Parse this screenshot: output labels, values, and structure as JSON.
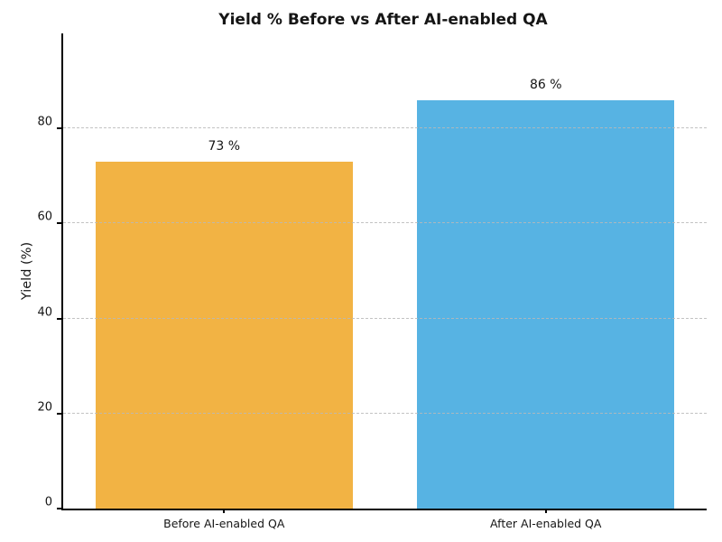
{
  "chart_data": {
    "type": "bar",
    "title": "Yield % Before vs After AI-enabled QA",
    "xlabel": "",
    "ylabel": "Yield (%)",
    "categories": [
      "Before AI-enabled QA",
      "After AI-enabled QA"
    ],
    "values": [
      73,
      86
    ],
    "value_labels": [
      "73 %",
      "86 %"
    ],
    "bar_colors": [
      "#F2B344",
      "#57B3E3"
    ],
    "yticks": [
      0,
      20,
      40,
      60,
      80
    ],
    "ylim": [
      0,
      100
    ],
    "bar_width_fraction": 0.4,
    "grid": {
      "axis": "y",
      "style": "dashed",
      "color": "#b9b9b9"
    },
    "legend": "none",
    "background_color": "#ffffff",
    "text_color": "#151515",
    "spine_color": "#000000"
  }
}
